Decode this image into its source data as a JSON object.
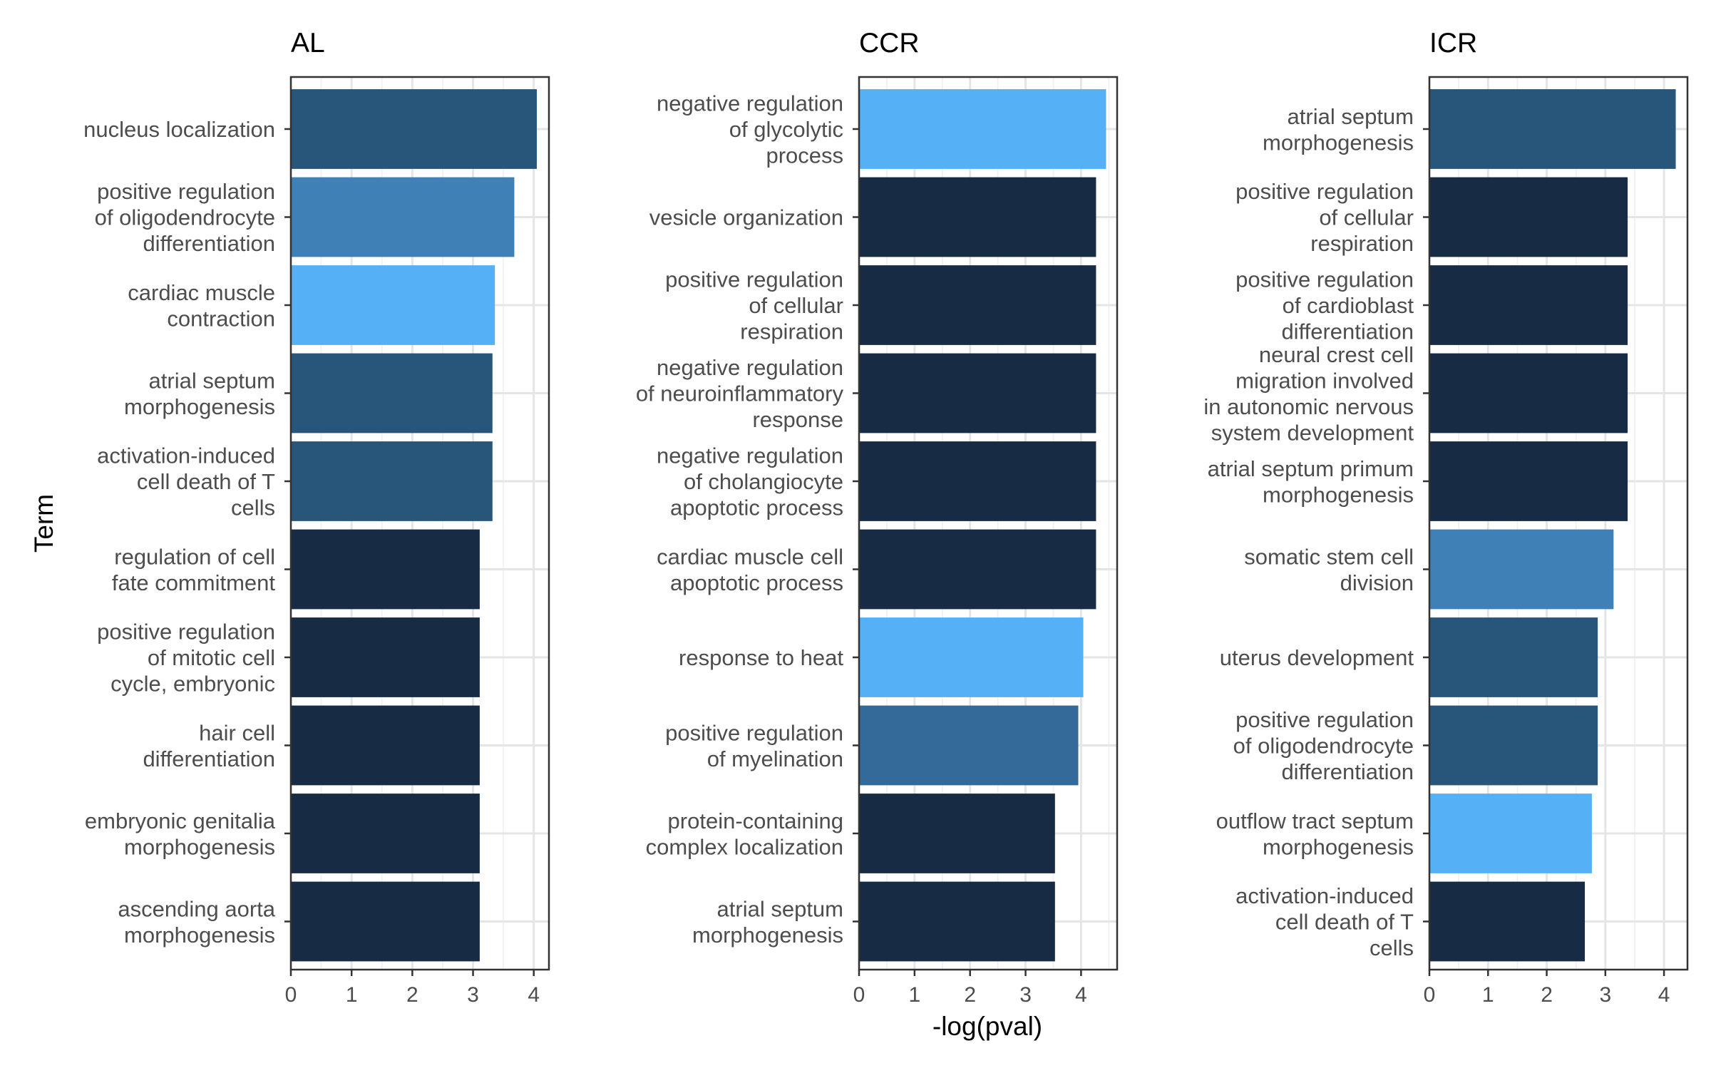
{
  "figure": {
    "y_axis_title": "Term",
    "x_axis_title": "-log(pval)"
  },
  "colors": {
    "darkest": "#172b44",
    "dark": "#28557a",
    "medium_dark": "#336a9a",
    "medium": "#3f81b7",
    "light": "#56b0f5",
    "panel_border": "#333333",
    "grid_major": "#e5e5e5",
    "grid_minor": "#f2f2f2",
    "tick_text": "#4d4d4d",
    "title_text": "#000000"
  },
  "chart_data": [
    {
      "type": "bar",
      "orientation": "horizontal",
      "title": "AL",
      "xlim": [
        0,
        4.25
      ],
      "x_ticks": [
        0,
        1,
        2,
        3,
        4
      ],
      "grid": true,
      "categories": [
        [
          "nucleus localization"
        ],
        [
          "positive regulation",
          "of oligodendrocyte",
          "differentiation"
        ],
        [
          "cardiac muscle",
          "contraction"
        ],
        [
          "atrial septum",
          "morphogenesis"
        ],
        [
          "activation-induced",
          "cell death of T",
          "cells"
        ],
        [
          "regulation of cell",
          "fate commitment"
        ],
        [
          "positive regulation",
          "of mitotic cell",
          "cycle, embryonic"
        ],
        [
          "hair cell",
          "differentiation"
        ],
        [
          "embryonic genitalia",
          "morphogenesis"
        ],
        [
          "ascending aorta",
          "morphogenesis"
        ]
      ],
      "values": [
        4.05,
        3.68,
        3.36,
        3.32,
        3.32,
        3.11,
        3.11,
        3.11,
        3.11,
        3.11
      ],
      "bar_colors": [
        "#28557a",
        "#3f81b7",
        "#56b0f5",
        "#28557a",
        "#28557a",
        "#172b44",
        "#172b44",
        "#172b44",
        "#172b44",
        "#172b44"
      ]
    },
    {
      "type": "bar",
      "orientation": "horizontal",
      "title": "CCR",
      "xlim": [
        0,
        4.65
      ],
      "x_ticks": [
        0,
        1,
        2,
        3,
        4
      ],
      "grid": true,
      "categories": [
        [
          "negative regulation",
          "of glycolytic",
          "process"
        ],
        [
          "vesicle organization"
        ],
        [
          "positive regulation",
          "of cellular",
          "respiration"
        ],
        [
          "negative regulation",
          "of neuroinflammatory",
          "response"
        ],
        [
          "negative regulation",
          "of cholangiocyte",
          "apoptotic process"
        ],
        [
          "cardiac muscle cell",
          "apoptotic process"
        ],
        [
          "response to heat"
        ],
        [
          "positive regulation",
          "of myelination"
        ],
        [
          "protein-containing",
          "complex localization"
        ],
        [
          "atrial septum",
          "morphogenesis"
        ]
      ],
      "values": [
        4.45,
        4.27,
        4.27,
        4.27,
        4.27,
        4.27,
        4.04,
        3.95,
        3.53,
        3.53
      ],
      "bar_colors": [
        "#56b0f5",
        "#172b44",
        "#172b44",
        "#172b44",
        "#172b44",
        "#172b44",
        "#56b0f5",
        "#336a9a",
        "#172b44",
        "#172b44"
      ]
    },
    {
      "type": "bar",
      "orientation": "horizontal",
      "title": "ICR",
      "xlim": [
        0,
        4.4
      ],
      "x_ticks": [
        0,
        1,
        2,
        3,
        4
      ],
      "grid": true,
      "categories": [
        [
          "atrial septum",
          "morphogenesis"
        ],
        [
          "positive regulation",
          "of cellular",
          "respiration"
        ],
        [
          "positive regulation",
          "of cardioblast",
          "differentiation"
        ],
        [
          "neural crest cell",
          "migration involved",
          "in autonomic nervous",
          "system development"
        ],
        [
          "atrial septum primum",
          "morphogenesis"
        ],
        [
          "somatic stem cell",
          "division"
        ],
        [
          "uterus development"
        ],
        [
          "positive regulation",
          "of oligodendrocyte",
          "differentiation"
        ],
        [
          "outflow tract septum",
          "morphogenesis"
        ],
        [
          "activation-induced",
          "cell death of T",
          "cells"
        ]
      ],
      "values": [
        4.2,
        3.38,
        3.38,
        3.38,
        3.38,
        3.14,
        2.87,
        2.87,
        2.77,
        2.65
      ],
      "bar_colors": [
        "#28557a",
        "#172b44",
        "#172b44",
        "#172b44",
        "#172b44",
        "#3f81b7",
        "#28557a",
        "#28557a",
        "#56b0f5",
        "#172b44"
      ]
    }
  ]
}
